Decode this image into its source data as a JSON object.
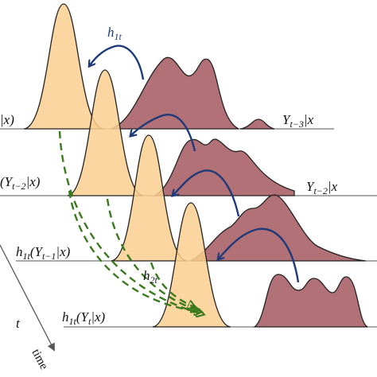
{
  "labels": [
    {
      "parts": [
        "h",
        "1t"
      ]
    },
    {
      "parts": [
        "|x)"
      ]
    },
    {
      "parts": [
        "Y",
        "t−3",
        "|x"
      ]
    },
    {
      "parts": [
        "(Y",
        "t−2",
        "|x)"
      ]
    },
    {
      "parts": [
        "Y",
        "t−2",
        "|x"
      ]
    },
    {
      "parts": [
        "h",
        "1t",
        "(Y",
        "t−1",
        "|x)"
      ]
    },
    {
      "parts": [
        "h",
        "2t"
      ]
    },
    {
      "parts": [
        "t"
      ]
    },
    {
      "parts": [
        "h",
        "1t",
        "(Y",
        "t",
        "|x)"
      ]
    },
    {
      "parts": [
        "time"
      ]
    }
  ]
}
